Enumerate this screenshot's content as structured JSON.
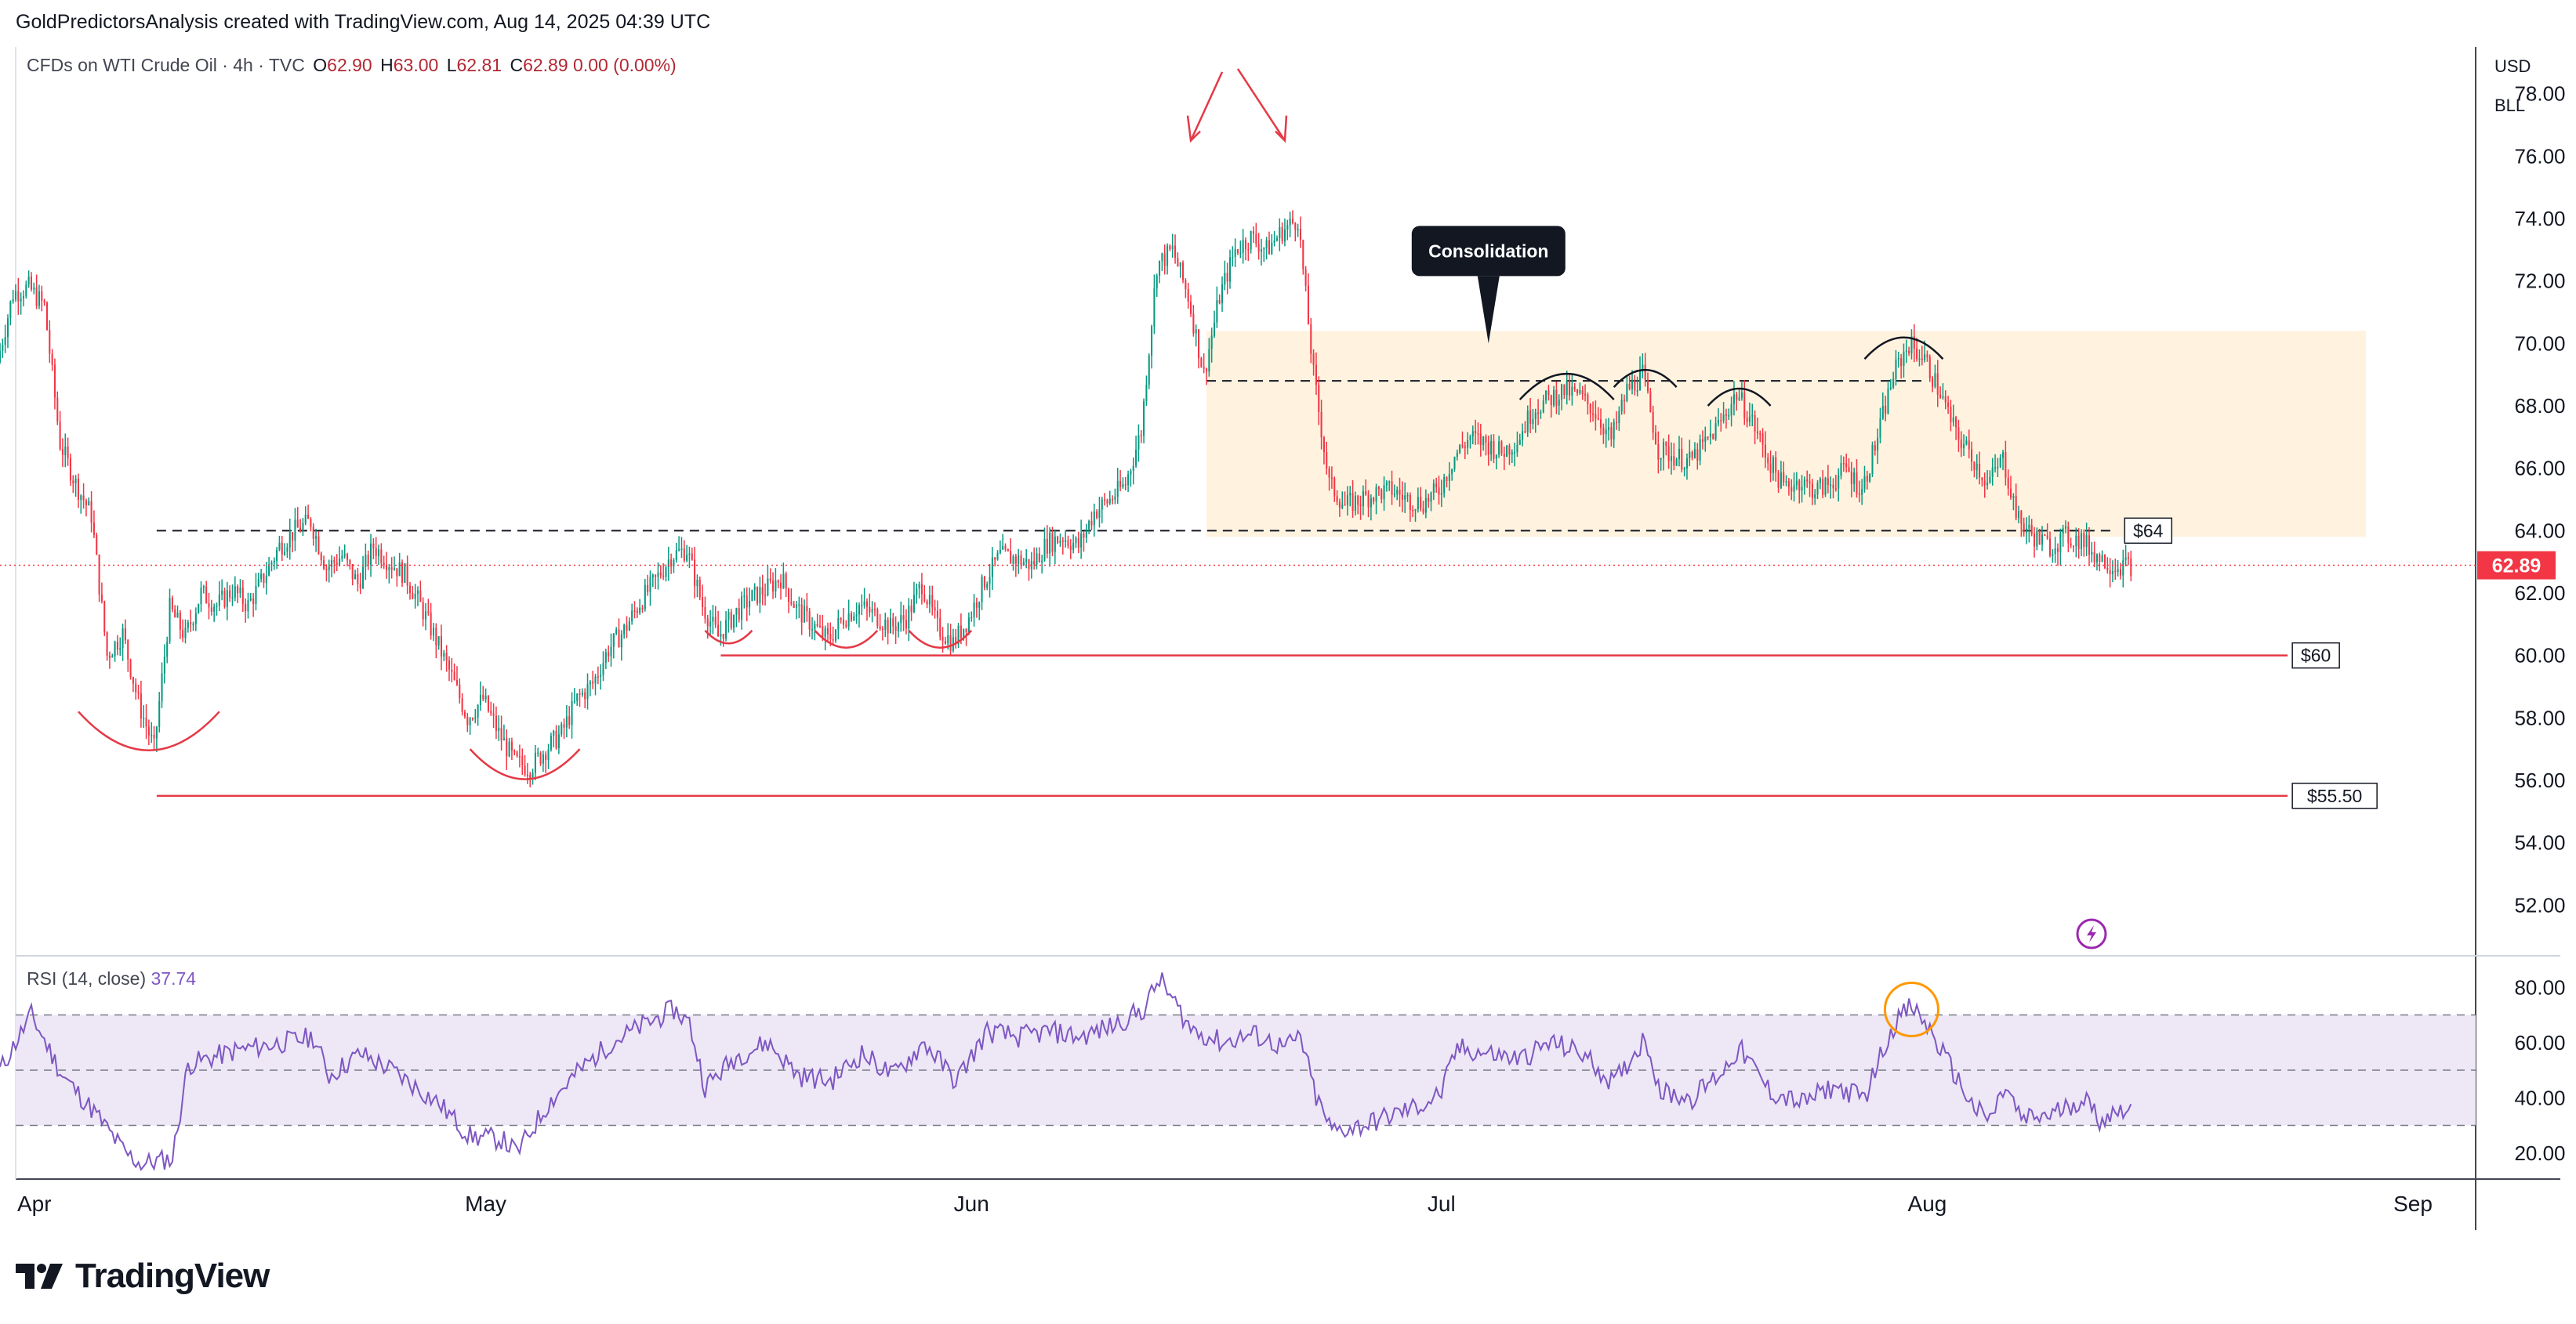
{
  "header": {
    "attribution": "GoldPredictorsAnalysis created with TradingView.com, Aug 14, 2025 04:39 UTC",
    "symbol": "CFDs on WTI Crude Oil · 4h · TVC",
    "ohlc": [
      {
        "k": "O",
        "v": "62.90"
      },
      {
        "k": "H",
        "v": "63.00"
      },
      {
        "k": "L",
        "v": "62.81"
      },
      {
        "k": "C",
        "v": "62.89"
      },
      {
        "k": "",
        "v": "0.00 (0.00%)"
      }
    ]
  },
  "axis": {
    "currency": "USD",
    "unit": "BLL"
  },
  "indicator": {
    "label": "RSI (14, close)",
    "value": "37.74"
  },
  "brand": {
    "name": "TradingView"
  },
  "colors": {
    "up": "#089981",
    "down": "#f23645",
    "rsi": "#7e57c2",
    "rsi_band": "#ede7f6",
    "zone": "#fff3e0",
    "support": "#e53946",
    "last_price": "#f23645",
    "circle": "#ff9800"
  },
  "chart_data": [
    {
      "type": "candlestick",
      "timeframe": "4h",
      "x_range": [
        "2025-03-31",
        "2025-09-05"
      ],
      "ylim": [
        50.5,
        79.5
      ],
      "y_ticks": [
        "52.00",
        "54.00",
        "56.00",
        "58.00",
        "60.00",
        "62.00",
        "64.00",
        "66.00",
        "68.00",
        "70.00",
        "72.00",
        "74.00",
        "76.00",
        "78.00"
      ],
      "x_ticks": [
        {
          "date": "2025-04-01",
          "label": "Apr"
        },
        {
          "date": "2025-05-01",
          "label": "May"
        },
        {
          "date": "2025-06-01",
          "label": "Jun"
        },
        {
          "date": "2025-07-01",
          "label": "Jul"
        },
        {
          "date": "2025-08-01",
          "label": "Aug"
        },
        {
          "date": "2025-09-01",
          "label": "Sep"
        }
      ],
      "grid": false,
      "last_price": {
        "value": 62.89,
        "label": "62.89"
      },
      "price_path": [
        [
          "2025-03-31",
          69.4
        ],
        [
          "2025-04-01",
          71.6
        ],
        [
          "2025-04-02",
          71.8
        ],
        [
          "2025-04-03",
          71.2
        ],
        [
          "2025-04-04",
          66.8
        ],
        [
          "2025-04-05",
          65.5
        ],
        [
          "2025-04-06",
          64.5
        ],
        [
          "2025-04-07",
          60.0
        ],
        [
          "2025-04-08",
          60.7
        ],
        [
          "2025-04-09",
          58.5
        ],
        [
          "2025-04-10",
          57.0
        ],
        [
          "2025-04-11",
          61.5
        ],
        [
          "2025-04-12",
          60.6
        ],
        [
          "2025-04-13",
          62.0
        ],
        [
          "2025-04-14",
          61.6
        ],
        [
          "2025-04-15",
          62.1
        ],
        [
          "2025-04-16",
          61.6
        ],
        [
          "2025-04-17",
          62.5
        ],
        [
          "2025-04-18",
          63.5
        ],
        [
          "2025-04-19",
          64.0
        ],
        [
          "2025-04-20",
          64.3
        ],
        [
          "2025-04-21",
          62.8
        ],
        [
          "2025-04-22",
          63.2
        ],
        [
          "2025-04-23",
          62.3
        ],
        [
          "2025-04-24",
          63.5
        ],
        [
          "2025-04-25",
          63.0
        ],
        [
          "2025-04-26",
          62.6
        ],
        [
          "2025-04-27",
          61.6
        ],
        [
          "2025-04-28",
          60.5
        ],
        [
          "2025-04-29",
          59.3
        ],
        [
          "2025-04-30",
          58.0
        ],
        [
          "2025-05-01",
          58.6
        ],
        [
          "2025-05-02",
          57.5
        ],
        [
          "2025-05-03",
          56.6
        ],
        [
          "2025-05-04",
          56.4
        ],
        [
          "2025-05-05",
          57.0
        ],
        [
          "2025-05-06",
          57.5
        ],
        [
          "2025-05-07",
          58.6
        ],
        [
          "2025-05-08",
          59.1
        ],
        [
          "2025-05-09",
          60.2
        ],
        [
          "2025-05-10",
          60.8
        ],
        [
          "2025-05-11",
          61.7
        ],
        [
          "2025-05-12",
          62.4
        ],
        [
          "2025-05-13",
          63.2
        ],
        [
          "2025-05-14",
          63.4
        ],
        [
          "2025-05-15",
          61.6
        ],
        [
          "2025-05-16",
          60.6
        ],
        [
          "2025-05-17",
          61.3
        ],
        [
          "2025-05-18",
          61.8
        ],
        [
          "2025-05-19",
          62.1
        ],
        [
          "2025-05-20",
          62.5
        ],
        [
          "2025-05-21",
          61.5
        ],
        [
          "2025-05-22",
          61.0
        ],
        [
          "2025-05-23",
          60.5
        ],
        [
          "2025-05-24",
          61.2
        ],
        [
          "2025-05-25",
          61.6
        ],
        [
          "2025-05-26",
          61.3
        ],
        [
          "2025-05-27",
          60.9
        ],
        [
          "2025-05-28",
          61.2
        ],
        [
          "2025-05-29",
          62.3
        ],
        [
          "2025-05-30",
          60.9
        ],
        [
          "2025-05-31",
          60.4
        ],
        [
          "2025-06-01",
          61.2
        ],
        [
          "2025-06-02",
          62.4
        ],
        [
          "2025-06-03",
          63.2
        ],
        [
          "2025-06-04",
          63.1
        ],
        [
          "2025-06-05",
          62.9
        ],
        [
          "2025-06-06",
          63.6
        ],
        [
          "2025-06-07",
          63.8
        ],
        [
          "2025-06-08",
          63.5
        ],
        [
          "2025-06-09",
          64.6
        ],
        [
          "2025-06-10",
          65.0
        ],
        [
          "2025-06-11",
          65.5
        ],
        [
          "2025-06-12",
          67.2
        ],
        [
          "2025-06-13",
          72.5
        ],
        [
          "2025-06-14",
          73.0
        ],
        [
          "2025-06-15",
          71.5
        ],
        [
          "2025-06-16",
          69.0
        ],
        [
          "2025-06-17",
          71.5
        ],
        [
          "2025-06-18",
          73.0
        ],
        [
          "2025-06-19",
          73.4
        ],
        [
          "2025-06-20",
          73.0
        ],
        [
          "2025-06-21",
          73.6
        ],
        [
          "2025-06-22",
          74.0
        ],
        [
          "2025-06-23",
          69.0
        ],
        [
          "2025-06-24",
          65.5
        ],
        [
          "2025-06-25",
          64.8
        ],
        [
          "2025-06-26",
          65.0
        ],
        [
          "2025-06-27",
          65.2
        ],
        [
          "2025-06-28",
          65.3
        ],
        [
          "2025-06-29",
          65.0
        ],
        [
          "2025-06-30",
          64.9
        ],
        [
          "2025-07-01",
          65.3
        ],
        [
          "2025-07-02",
          66.4
        ],
        [
          "2025-07-03",
          67.0
        ],
        [
          "2025-07-04",
          66.8
        ],
        [
          "2025-07-05",
          66.5
        ],
        [
          "2025-07-06",
          66.9
        ],
        [
          "2025-07-07",
          67.9
        ],
        [
          "2025-07-08",
          68.2
        ],
        [
          "2025-07-09",
          68.5
        ],
        [
          "2025-07-10",
          68.3
        ],
        [
          "2025-07-11",
          67.8
        ],
        [
          "2025-07-12",
          66.9
        ],
        [
          "2025-07-13",
          68.5
        ],
        [
          "2025-07-14",
          69.0
        ],
        [
          "2025-07-15",
          66.6
        ],
        [
          "2025-07-16",
          66.4
        ],
        [
          "2025-07-17",
          66.2
        ],
        [
          "2025-07-18",
          66.8
        ],
        [
          "2025-07-19",
          67.5
        ],
        [
          "2025-07-20",
          68.4
        ],
        [
          "2025-07-21",
          67.5
        ],
        [
          "2025-07-22",
          66.3
        ],
        [
          "2025-07-23",
          65.4
        ],
        [
          "2025-07-24",
          65.6
        ],
        [
          "2025-07-25",
          65.3
        ],
        [
          "2025-07-26",
          65.5
        ],
        [
          "2025-07-27",
          66.0
        ],
        [
          "2025-07-28",
          65.3
        ],
        [
          "2025-07-29",
          67.0
        ],
        [
          "2025-07-30",
          69.0
        ],
        [
          "2025-07-31",
          70.0
        ],
        [
          "2025-08-01",
          69.5
        ],
        [
          "2025-08-02",
          68.4
        ],
        [
          "2025-08-03",
          67.1
        ],
        [
          "2025-08-04",
          66.4
        ],
        [
          "2025-08-05",
          65.5
        ],
        [
          "2025-08-06",
          66.3
        ],
        [
          "2025-08-07",
          64.3
        ],
        [
          "2025-08-08",
          63.8
        ],
        [
          "2025-08-09",
          63.5
        ],
        [
          "2025-08-10",
          63.8
        ],
        [
          "2025-08-11",
          63.7
        ],
        [
          "2025-08-12",
          63.2
        ],
        [
          "2025-08-13",
          62.9
        ],
        [
          "2025-08-14",
          62.89
        ]
      ],
      "levels": [
        {
          "value": 64,
          "label": "$64",
          "from": "2025-04-10",
          "to": "2025-08-13",
          "style": "dashed"
        },
        {
          "value": 68.8,
          "from": "2025-06-16",
          "to": "2025-08-01",
          "style": "dashed"
        },
        {
          "value": 60,
          "label": "$60",
          "from": "2025-05-16",
          "to": "2025-08-24",
          "style": "solid"
        },
        {
          "value": 55.5,
          "label": "$55.50",
          "from": "2025-04-10",
          "to": "2025-08-24",
          "style": "solid"
        }
      ],
      "zone": {
        "from": "2025-06-16",
        "to": "2025-08-29",
        "low": 63.8,
        "high": 70.4
      },
      "annotations": [
        {
          "text": "Consolidation",
          "date": "2025-07-04",
          "value": 70.0
        }
      ]
    },
    {
      "type": "line",
      "name": "RSI (14, close)",
      "ylim": [
        12,
        90
      ],
      "y_ticks": [
        "20.00",
        "40.00",
        "60.00",
        "80.00"
      ],
      "bands": [
        30,
        50,
        70
      ],
      "last_value": 37.74,
      "points": [
        [
          "2025-03-31",
          50
        ],
        [
          "2025-04-02",
          70
        ],
        [
          "2025-04-04",
          48
        ],
        [
          "2025-04-06",
          35
        ],
        [
          "2025-04-08",
          20
        ],
        [
          "2025-04-09",
          16
        ],
        [
          "2025-04-11",
          18
        ],
        [
          "2025-04-12",
          52
        ],
        [
          "2025-04-15",
          57
        ],
        [
          "2025-04-18",
          60
        ],
        [
          "2025-04-20",
          62
        ],
        [
          "2025-04-21",
          48
        ],
        [
          "2025-04-23",
          56
        ],
        [
          "2025-04-25",
          50
        ],
        [
          "2025-04-28",
          38
        ],
        [
          "2025-04-30",
          26
        ],
        [
          "2025-05-02",
          25
        ],
        [
          "2025-05-03",
          20
        ],
        [
          "2025-05-05",
          38
        ],
        [
          "2025-05-07",
          50
        ],
        [
          "2025-05-09",
          60
        ],
        [
          "2025-05-11",
          66
        ],
        [
          "2025-05-13",
          72
        ],
        [
          "2025-05-14",
          67
        ],
        [
          "2025-05-15",
          44
        ],
        [
          "2025-05-17",
          55
        ],
        [
          "2025-05-19",
          60
        ],
        [
          "2025-05-21",
          48
        ],
        [
          "2025-05-23",
          46
        ],
        [
          "2025-05-25",
          56
        ],
        [
          "2025-05-27",
          48
        ],
        [
          "2025-05-29",
          60
        ],
        [
          "2025-05-31",
          46
        ],
        [
          "2025-06-02",
          64
        ],
        [
          "2025-06-04",
          62
        ],
        [
          "2025-06-06",
          64
        ],
        [
          "2025-06-08",
          62
        ],
        [
          "2025-06-10",
          66
        ],
        [
          "2025-06-12",
          72
        ],
        [
          "2025-06-13",
          83
        ],
        [
          "2025-06-15",
          65
        ],
        [
          "2025-06-17",
          60
        ],
        [
          "2025-06-19",
          63
        ],
        [
          "2025-06-21",
          58
        ],
        [
          "2025-06-22",
          62
        ],
        [
          "2025-06-23",
          40
        ],
        [
          "2025-06-24",
          28
        ],
        [
          "2025-06-26",
          30
        ],
        [
          "2025-06-28",
          34
        ],
        [
          "2025-06-30",
          38
        ],
        [
          "2025-07-01",
          42
        ],
        [
          "2025-07-02",
          58
        ],
        [
          "2025-07-04",
          56
        ],
        [
          "2025-07-06",
          54
        ],
        [
          "2025-07-08",
          60
        ],
        [
          "2025-07-10",
          56
        ],
        [
          "2025-07-12",
          45
        ],
        [
          "2025-07-14",
          62
        ],
        [
          "2025-07-15",
          42
        ],
        [
          "2025-07-17",
          40
        ],
        [
          "2025-07-19",
          50
        ],
        [
          "2025-07-20",
          58
        ],
        [
          "2025-07-22",
          42
        ],
        [
          "2025-07-24",
          38
        ],
        [
          "2025-07-26",
          44
        ],
        [
          "2025-07-28",
          40
        ],
        [
          "2025-07-29",
          55
        ],
        [
          "2025-07-30",
          68
        ],
        [
          "2025-07-31",
          73
        ],
        [
          "2025-08-01",
          66
        ],
        [
          "2025-08-03",
          46
        ],
        [
          "2025-08-04",
          36
        ],
        [
          "2025-08-05",
          32
        ],
        [
          "2025-08-06",
          44
        ],
        [
          "2025-08-07",
          32
        ],
        [
          "2025-08-09",
          34
        ],
        [
          "2025-08-11",
          40
        ],
        [
          "2025-08-12",
          32
        ],
        [
          "2025-08-14",
          37.74
        ]
      ]
    }
  ]
}
